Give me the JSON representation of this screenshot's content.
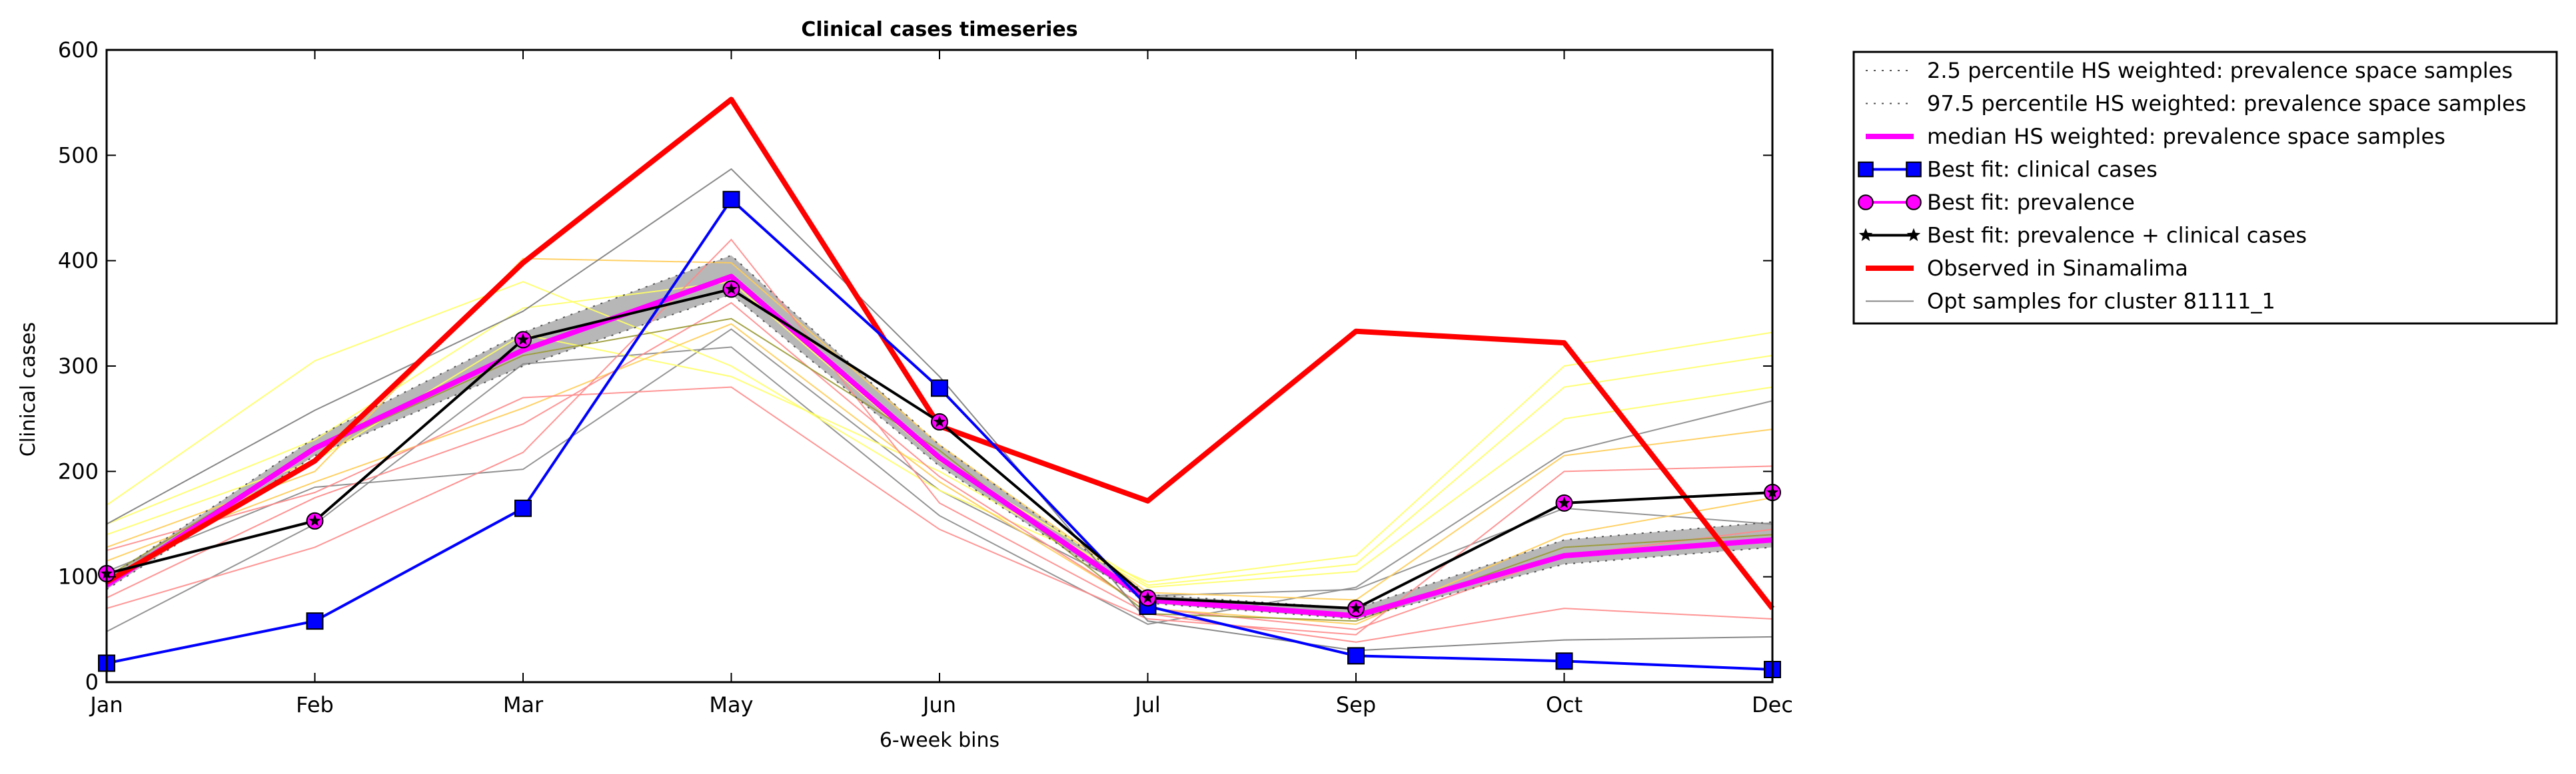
{
  "chart_data": {
    "type": "line",
    "title": "Clinical cases timeseries",
    "xlabel": "6-week bins",
    "ylabel": "Clinical cases",
    "ylim": [
      0,
      600
    ],
    "yticks": [
      0,
      100,
      200,
      300,
      400,
      500,
      600
    ],
    "categories": [
      "Jan",
      "Feb",
      "Mar",
      "May",
      "Jun",
      "Jul",
      "Sep",
      "Oct",
      "Dec"
    ],
    "legend_position": "outside-right",
    "band": {
      "color": "#aaaaaa",
      "lower": [
        88,
        215,
        300,
        368,
        205,
        75,
        60,
        112,
        128
      ],
      "upper": [
        98,
        232,
        332,
        405,
        225,
        83,
        70,
        135,
        152
      ]
    },
    "series": [
      {
        "name": "2.5 percentile HS weighted: prevalence space samples",
        "style": "dotted",
        "color": "#555555",
        "width": 2,
        "values": [
          88,
          215,
          300,
          368,
          205,
          75,
          60,
          112,
          128
        ]
      },
      {
        "name": "97.5 percentile HS weighted: prevalence space samples",
        "style": "dotted",
        "color": "#555555",
        "width": 2,
        "values": [
          98,
          232,
          332,
          405,
          225,
          83,
          70,
          135,
          152
        ]
      },
      {
        "name": "median HS weighted: prevalence space samples",
        "style": "solid",
        "color": "#ff00ff",
        "width": 8,
        "values": [
          92,
          222,
          315,
          385,
          213,
          78,
          63,
          120,
          135
        ]
      },
      {
        "name": "Best fit: clinical cases",
        "style": "solid",
        "color": "#0000ff",
        "width": 4,
        "marker": "square",
        "values": [
          18,
          58,
          165,
          458,
          279,
          72,
          25,
          20,
          12
        ]
      },
      {
        "name": "Best fit: prevalence",
        "style": "solid",
        "color": "#ff00ff",
        "width": 4,
        "marker": "circle",
        "values": [
          103,
          153,
          325,
          373,
          247,
          80,
          70,
          170,
          180
        ]
      },
      {
        "name": "Best fit: prevalence + clinical cases",
        "style": "solid",
        "color": "#000000",
        "width": 4,
        "marker": "star",
        "values": [
          103,
          153,
          325,
          373,
          247,
          80,
          70,
          170,
          180
        ]
      },
      {
        "name": "Observed in Sinamalima",
        "style": "solid",
        "color": "#ff0000",
        "width": 8,
        "values": [
          95,
          210,
          398,
          553,
          243,
          172,
          333,
          322,
          70
        ]
      },
      {
        "name": "Opt samples for cluster 81111_1",
        "style": "solid",
        "color": "#888888",
        "width": 2,
        "values": [
          150,
          258,
          352,
          487,
          290,
          58,
          30,
          40,
          43
        ]
      }
    ],
    "background_lines": [
      {
        "color": "#888888",
        "values": [
          48,
          150,
          302,
          318,
          158,
          55,
          90,
          218,
          267
        ]
      },
      {
        "color": "#888888",
        "values": [
          105,
          185,
          202,
          335,
          182,
          82,
          88,
          165,
          150
        ]
      },
      {
        "color": "#ffff66",
        "values": [
          168,
          305,
          380,
          300,
          182,
          95,
          120,
          300,
          332
        ]
      },
      {
        "color": "#ffff66",
        "values": [
          150,
          230,
          355,
          380,
          210,
          92,
          112,
          280,
          310
        ]
      },
      {
        "color": "#ffff66",
        "values": [
          140,
          210,
          330,
          290,
          200,
          90,
          105,
          250,
          280
        ]
      },
      {
        "color": "#ffcc55",
        "values": [
          128,
          200,
          402,
          398,
          225,
          85,
          78,
          215,
          240
        ]
      },
      {
        "color": "#ffcc55",
        "values": [
          115,
          190,
          260,
          340,
          190,
          70,
          55,
          140,
          175
        ]
      },
      {
        "color": "#ff8888",
        "values": [
          125,
          180,
          270,
          280,
          145,
          60,
          45,
          200,
          205
        ]
      },
      {
        "color": "#ff8888",
        "values": [
          70,
          128,
          218,
          420,
          170,
          65,
          38,
          70,
          60
        ]
      },
      {
        "color": "#ff8888",
        "values": [
          80,
          175,
          245,
          360,
          195,
          70,
          50,
          120,
          145
        ]
      },
      {
        "color": "#999933",
        "values": [
          100,
          220,
          310,
          345,
          220,
          65,
          58,
          128,
          140
        ]
      }
    ]
  }
}
